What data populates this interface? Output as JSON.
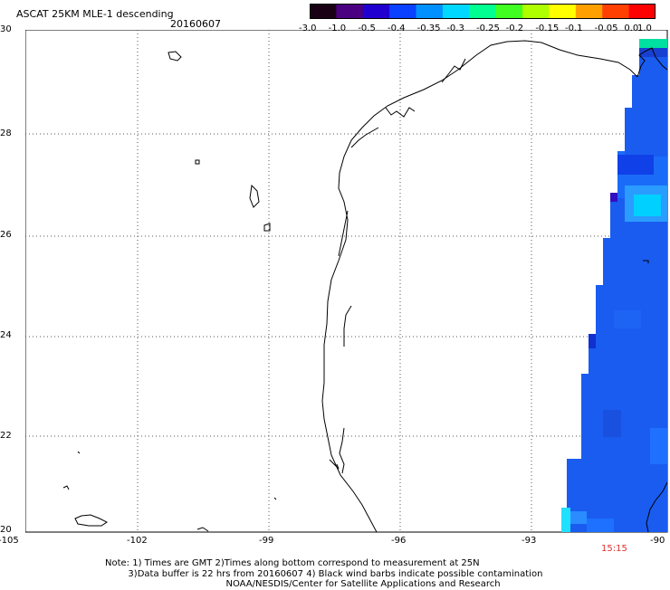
{
  "title": "ASCAT 25KM MLE-1 descending",
  "date": "20160607",
  "colorbar": {
    "labels": [
      "-3.0",
      "-1.0",
      "-0.5",
      "-0.4",
      "-0.35",
      "-0.3",
      "-0.25",
      "-0.2",
      "-0.15",
      "-0.1",
      "-0.05",
      "0.0",
      "1.0"
    ],
    "colors": [
      "#1a0015",
      "#4a0080",
      "#2000d0",
      "#0a40ff",
      "#0090ff",
      "#00d8ff",
      "#00ff90",
      "#40ff20",
      "#b0ff00",
      "#ffff00",
      "#ffa000",
      "#ff4000",
      "#ff0000"
    ]
  },
  "map": {
    "lat_labels": [
      "30",
      "28",
      "26",
      "24",
      "22",
      "20"
    ],
    "lon_labels": [
      "-105",
      "-102",
      "-99",
      "-96",
      "-93",
      "-90"
    ],
    "lat_range": [
      20,
      30
    ],
    "lon_range": [
      -105,
      -90
    ],
    "grid": "dotted"
  },
  "swath_time": "15:15",
  "note_lines": [
    "Note: 1) Times are GMT 2)Times along bottom correspond to measurement at 25N",
    "        3)Data buffer is 22 hrs from 20160607 4) Black wind barbs indicate possible contamination",
    "                                          NOAA/NESDIS/Center for Satellite Applications and Research"
  ],
  "colors": {
    "swath_main": "#1a5cf0",
    "swath_light": "#2a8cff",
    "coast": "#000000",
    "time_text": "#e03030"
  }
}
